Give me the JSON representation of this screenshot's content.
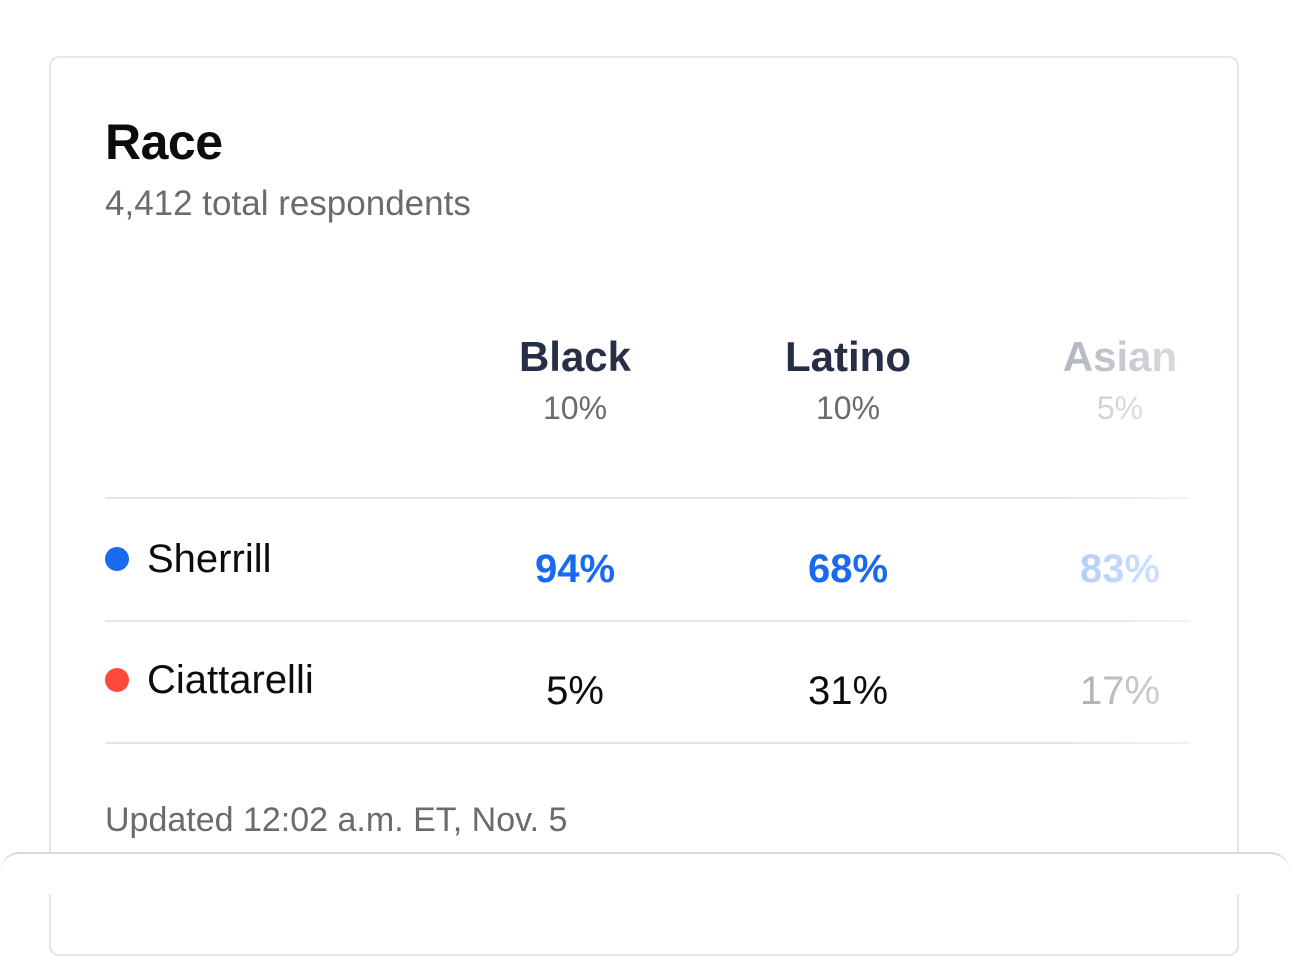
{
  "card": {
    "title": "Race",
    "subtitle": "4,412 total respondents",
    "updated": "Updated 12:02 a.m. ET, Nov. 5"
  },
  "columns": [
    {
      "name": "Black",
      "share": "10%"
    },
    {
      "name": "Latino",
      "share": "10%"
    },
    {
      "name": "Asian",
      "share": "5%"
    }
  ],
  "candidates": [
    {
      "name": "Sherrill",
      "color": "#1a6af0",
      "values": [
        "94%",
        "68%",
        "83%"
      ],
      "leading": true
    },
    {
      "name": "Ciattarelli",
      "color": "#ff4a3d",
      "values": [
        "5%",
        "31%",
        "17%"
      ],
      "leading": false
    }
  ],
  "colors": {
    "lead_text": "#1a6af0",
    "header_text": "#262f45"
  }
}
